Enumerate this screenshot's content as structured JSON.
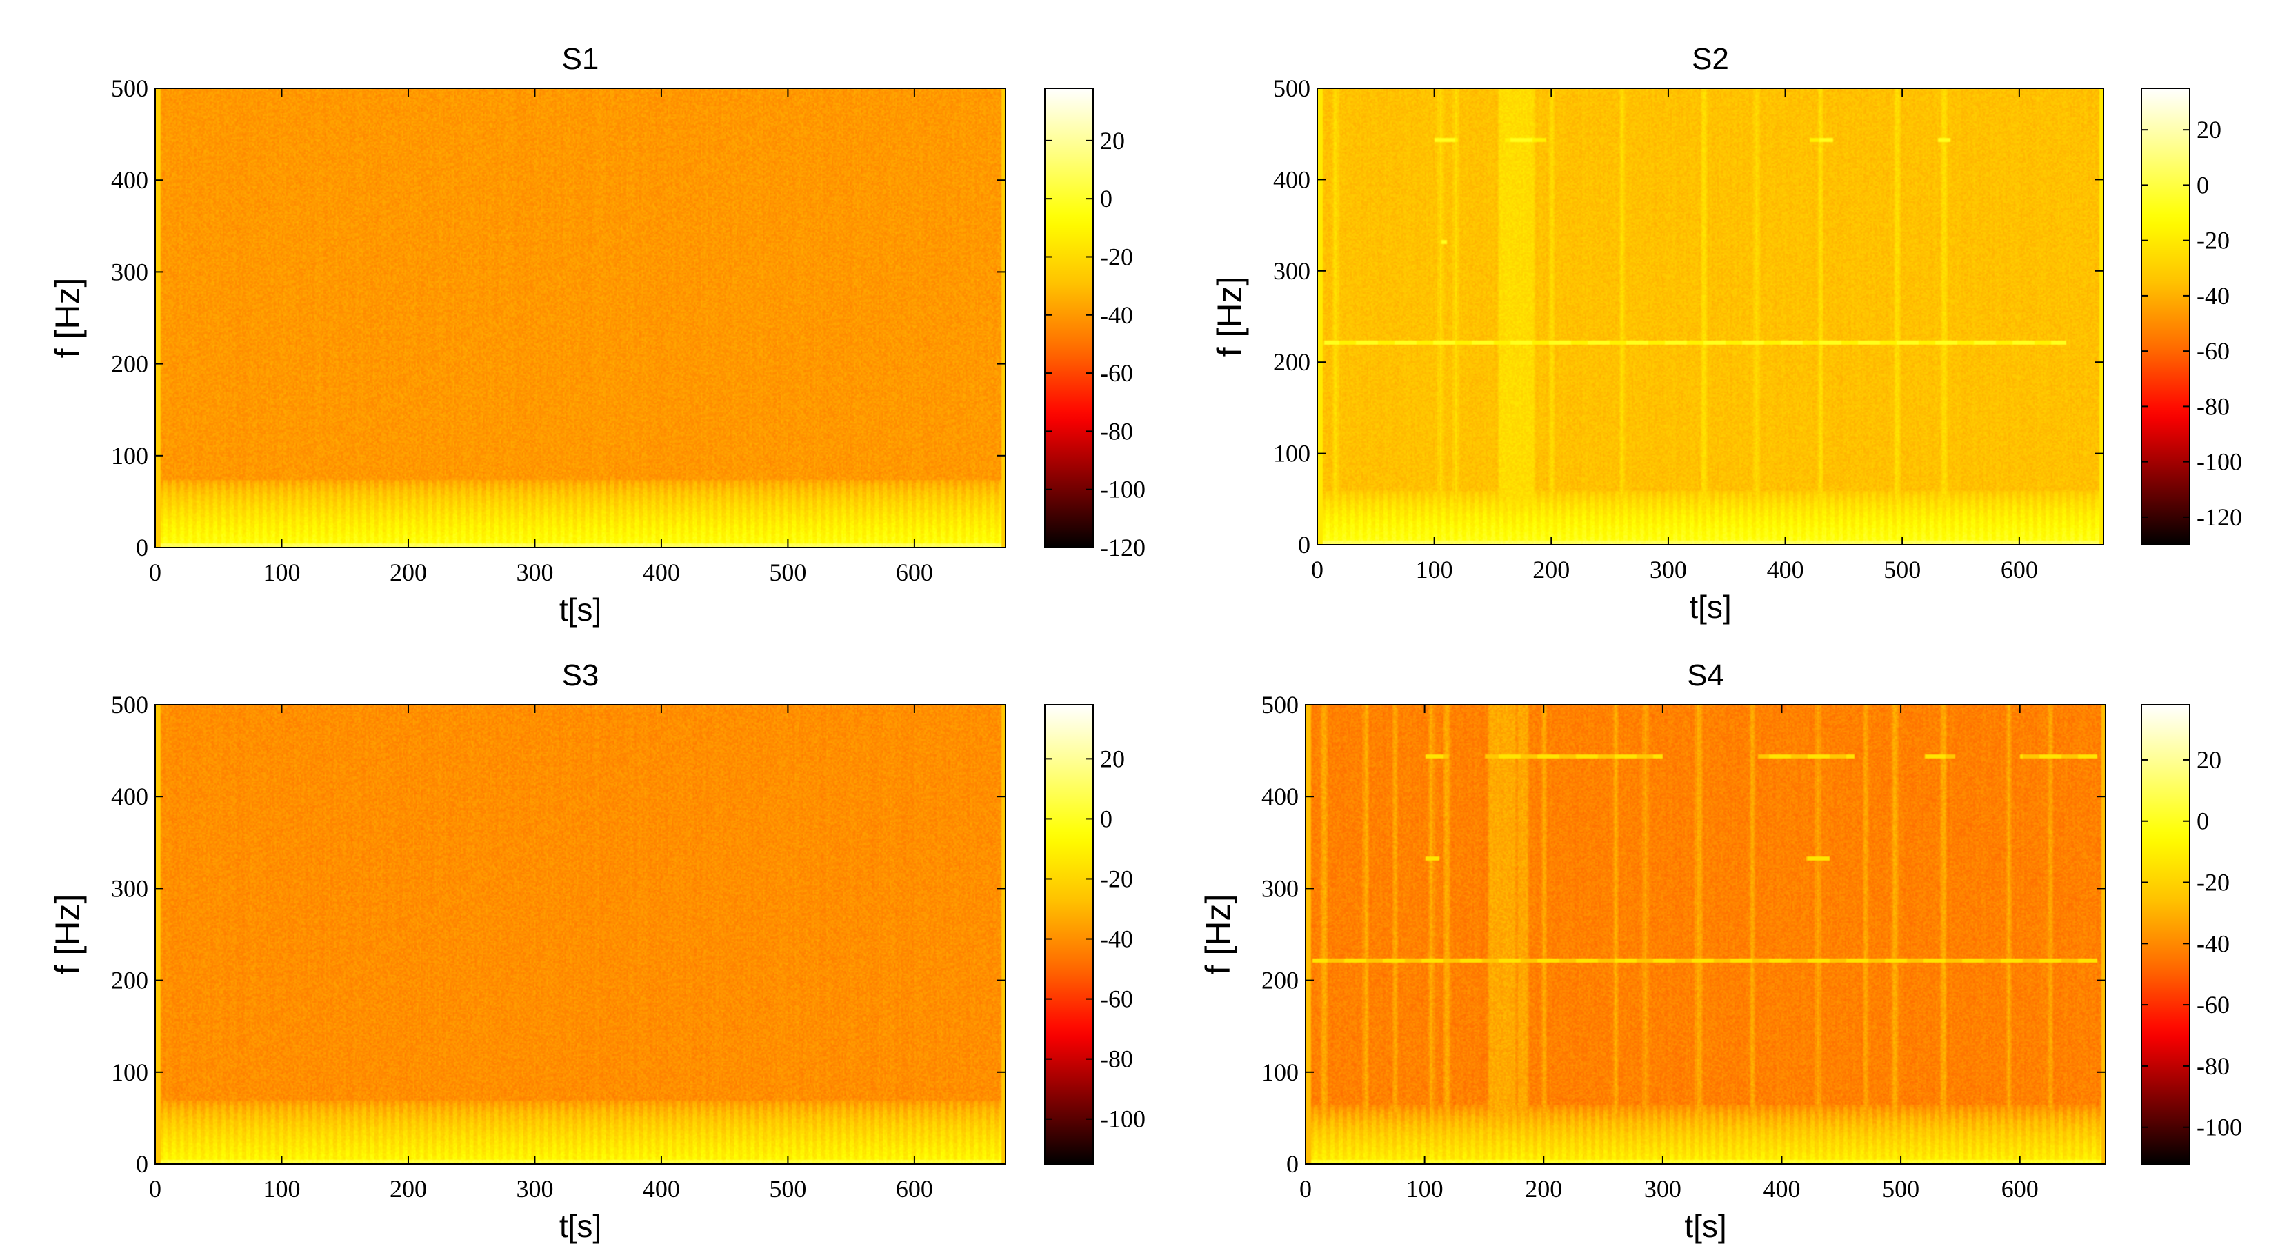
{
  "figure": {
    "colormap": "hot",
    "colormap_stops": [
      "#000000",
      "#800000",
      "#ff0000",
      "#ff6a00",
      "#ffc000",
      "#ffff00",
      "#ffff80",
      "#ffffff"
    ]
  },
  "chart_data": [
    {
      "type": "heatmap",
      "title": "S1",
      "xlabel": "t[s]",
      "ylabel": "f [Hz]",
      "xlim": [
        0,
        672
      ],
      "ylim": [
        0,
        500
      ],
      "xticks": [
        0,
        100,
        200,
        300,
        400,
        500,
        600
      ],
      "yticks": [
        0,
        100,
        200,
        300,
        400,
        500
      ],
      "colorbar": {
        "clim": [
          -120,
          38
        ],
        "ticks": [
          20,
          0,
          -20,
          -40,
          -60,
          -80,
          -100,
          -120
        ]
      },
      "background_db": -40,
      "low_band": {
        "top_hz": 75,
        "floor_db": -5
      },
      "vertical_lines": [],
      "tonal_lines": []
    },
    {
      "type": "heatmap",
      "title": "S2",
      "xlabel": "t[s]",
      "ylabel": "f [Hz]",
      "xlim": [
        0,
        672
      ],
      "ylim": [
        0,
        500
      ],
      "xticks": [
        0,
        100,
        200,
        300,
        400,
        500,
        600
      ],
      "yticks": [
        0,
        100,
        200,
        300,
        400,
        500
      ],
      "colorbar": {
        "clim": [
          -130,
          35
        ],
        "ticks": [
          20,
          0,
          -20,
          -40,
          -60,
          -80,
          -100,
          -120
        ]
      },
      "background_db": -35,
      "low_band": {
        "top_hz": 60,
        "floor_db": -8
      },
      "vertical_lines": [
        {
          "t": 15,
          "w": 3
        },
        {
          "t": 105,
          "w": 2
        },
        {
          "t": 118,
          "w": 2
        },
        {
          "t": 160,
          "w": 10
        },
        {
          "t": 170,
          "w": 12
        },
        {
          "t": 180,
          "w": 8
        },
        {
          "t": 200,
          "w": 2
        },
        {
          "t": 260,
          "w": 2
        },
        {
          "t": 330,
          "w": 3
        },
        {
          "t": 375,
          "w": 2
        },
        {
          "t": 430,
          "w": 2
        },
        {
          "t": 495,
          "w": 3
        },
        {
          "t": 535,
          "w": 3
        }
      ],
      "tonal_lines": [
        {
          "f": 222,
          "t0": 5,
          "t1": 640
        },
        {
          "f": 444,
          "t0": 100,
          "t1": 120
        },
        {
          "f": 444,
          "t0": 160,
          "t1": 195
        },
        {
          "f": 444,
          "t0": 420,
          "t1": 440
        },
        {
          "f": 444,
          "t0": 530,
          "t1": 540
        },
        {
          "f": 333,
          "t0": 105,
          "t1": 110
        }
      ]
    },
    {
      "type": "heatmap",
      "title": "S3",
      "xlabel": "t[s]",
      "ylabel": "f [Hz]",
      "xlim": [
        0,
        672
      ],
      "ylim": [
        0,
        500
      ],
      "xticks": [
        0,
        100,
        200,
        300,
        400,
        500,
        600
      ],
      "yticks": [
        0,
        100,
        200,
        300,
        400,
        500
      ],
      "colorbar": {
        "clim": [
          -115,
          38
        ],
        "ticks": [
          20,
          0,
          -20,
          -40,
          -60,
          -80,
          -100
        ]
      },
      "background_db": -40,
      "low_band": {
        "top_hz": 70,
        "floor_db": -8
      },
      "vertical_lines": [],
      "tonal_lines": []
    },
    {
      "type": "heatmap",
      "title": "S4",
      "xlabel": "t[s]",
      "ylabel": "f [Hz]",
      "xlim": [
        0,
        672
      ],
      "ylim": [
        0,
        500
      ],
      "xticks": [
        0,
        100,
        200,
        300,
        400,
        500,
        600
      ],
      "yticks": [
        0,
        100,
        200,
        300,
        400,
        500
      ],
      "colorbar": {
        "clim": [
          -112,
          38
        ],
        "ticks": [
          20,
          0,
          -20,
          -40,
          -60,
          -80,
          -100
        ]
      },
      "background_db": -42,
      "low_band": {
        "top_hz": 65,
        "floor_db": -10
      },
      "vertical_lines": [
        {
          "t": 15,
          "w": 3
        },
        {
          "t": 50,
          "w": 2
        },
        {
          "t": 75,
          "w": 2
        },
        {
          "t": 105,
          "w": 3
        },
        {
          "t": 118,
          "w": 3
        },
        {
          "t": 158,
          "w": 8
        },
        {
          "t": 168,
          "w": 14
        },
        {
          "t": 182,
          "w": 8
        },
        {
          "t": 200,
          "w": 2
        },
        {
          "t": 260,
          "w": 2
        },
        {
          "t": 285,
          "w": 2
        },
        {
          "t": 330,
          "w": 4
        },
        {
          "t": 375,
          "w": 2
        },
        {
          "t": 430,
          "w": 2
        },
        {
          "t": 470,
          "w": 2
        },
        {
          "t": 495,
          "w": 3
        },
        {
          "t": 535,
          "w": 3
        },
        {
          "t": 590,
          "w": 2
        },
        {
          "t": 625,
          "w": 2
        }
      ],
      "tonal_lines": [
        {
          "f": 222,
          "t0": 5,
          "t1": 665
        },
        {
          "f": 444,
          "t0": 100,
          "t1": 120
        },
        {
          "f": 444,
          "t0": 150,
          "t1": 300
        },
        {
          "f": 444,
          "t0": 380,
          "t1": 460
        },
        {
          "f": 444,
          "t0": 520,
          "t1": 545
        },
        {
          "f": 444,
          "t0": 600,
          "t1": 665
        },
        {
          "f": 333,
          "t0": 100,
          "t1": 112
        },
        {
          "f": 333,
          "t0": 420,
          "t1": 440
        }
      ]
    }
  ]
}
